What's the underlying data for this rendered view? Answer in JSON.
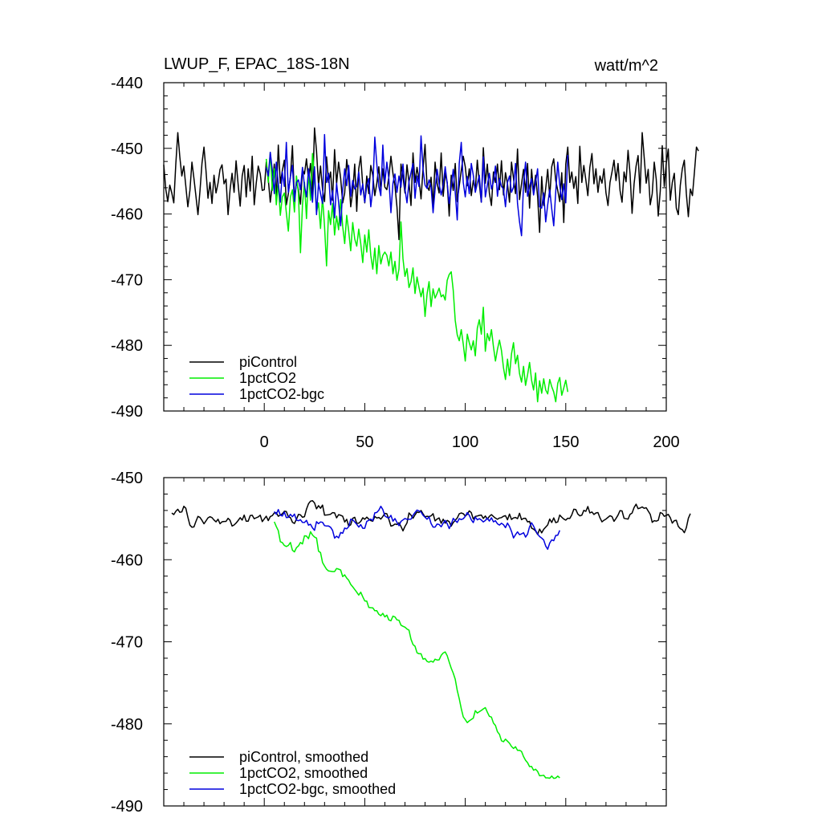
{
  "colors": {
    "piControl": "#000000",
    "pct1CO2": "#00ee00",
    "bgc": "#0000dd"
  },
  "chart_data": [
    {
      "type": "line",
      "title": "LWUP_F, EPAC_18S-18N",
      "units": "watt/m^2",
      "xlim": [
        -50,
        200
      ],
      "ylim": [
        -490,
        -440
      ],
      "xticks": [
        0,
        50,
        100,
        150,
        200
      ],
      "xtick_labels": [
        "0",
        "50",
        "100",
        "150",
        "200"
      ],
      "yticks": [
        -440,
        -450,
        -460,
        -470,
        -480,
        -490
      ],
      "ytick_labels": [
        "-440",
        "-450",
        "-460",
        "-470",
        "-480",
        "-490"
      ],
      "legend_position": "bottom-left",
      "series": [
        {
          "name": "piControl",
          "color": "#000000",
          "x_start": -50,
          "x_step": 1,
          "values": [
            -452.5,
            -456.2,
            -458.1,
            -455.6,
            -456.8,
            -458.3,
            -452.4,
            -447.6,
            -451.3,
            -454.2,
            -452.7,
            -455.8,
            -458.9,
            -456.4,
            -452.1,
            -454.6,
            -457.3,
            -460.1,
            -456.5,
            -452.3,
            -449.8,
            -453.4,
            -457.6,
            -455.2,
            -458.4,
            -454.1,
            -456.8,
            -455.3,
            -453.2,
            -452.5,
            -455.4,
            -454.7,
            -460.1,
            -456.3,
            -453.8,
            -456.7,
            -451.9,
            -455.4,
            -458.8,
            -454.2,
            -452.6,
            -457.4,
            -453.1,
            -456.5,
            -451.2,
            -458.6,
            -455.3,
            -452.7,
            -453.9,
            -456.4,
            -456.3,
            -452.1,
            -454.7,
            -458.2,
            -455.6,
            -452.4,
            -457.5,
            -449.5,
            -455.3,
            -453.4,
            -451.8,
            -458.6,
            -456.9,
            -454.3,
            -449.6,
            -457.8,
            -455.1,
            -456.3,
            -458.5,
            -453.2,
            -453.9,
            -451.6,
            -454.8,
            -452.3,
            -457.1,
            -446.9,
            -450.4,
            -455.6,
            -452.7,
            -456.3,
            -458.1,
            -451.3,
            -455.2,
            -453.6,
            -457.9,
            -450.2,
            -455.4,
            -452.1,
            -454.6,
            -458.3,
            -456.8,
            -451.7,
            -454.3,
            -458.9,
            -456.6,
            -452.4,
            -459.6,
            -453.1,
            -451.2,
            -455.7,
            -458.3,
            -454.2,
            -456.9,
            -452.6,
            -454.1,
            -457.2,
            -455.3,
            -452.8,
            -456.4,
            -453.1,
            -455.9,
            -456.3,
            -454.4,
            -451.2,
            -453.8,
            -455.7,
            -458.9,
            -463.9,
            -452.4,
            -454.3,
            -456.8,
            -452.5,
            -455.2,
            -458.7,
            -450.7,
            -455.2,
            -452.9,
            -454.8,
            -457.7,
            -453.1,
            -449.4,
            -455.8,
            -456.4,
            -454.4,
            -458.6,
            -452.1,
            -455.3,
            -456.8,
            -450.7,
            -457.3,
            -453.8,
            -455.2,
            -460.3,
            -454.1,
            -456.4,
            -452.3,
            -458.1,
            -455.7,
            -453.4,
            -451.2,
            -452.8,
            -455.7,
            -453.1,
            -457.2,
            -454.9,
            -456.3,
            -451.8,
            -455.4,
            -458.2,
            -449.9,
            -455.3,
            -452.4,
            -456.8,
            -458.7,
            -453.6,
            -455.2,
            -452.4,
            -456.3,
            -451.9,
            -457.1,
            -453.7,
            -455.4,
            -458.2,
            -452.1,
            -454.6,
            -456.9,
            -450.1,
            -457.8,
            -455.4,
            -453.2,
            -456.7,
            -452.3,
            -459.1,
            -453.2,
            -456.7,
            -454.1,
            -457.3,
            -462.8,
            -454.3,
            -458.7,
            -456.1,
            -453.2,
            -457.4,
            -452.8,
            -451.6,
            -454.9,
            -456.4,
            -458.1,
            -453.7,
            -461.3,
            -452.4,
            -449.8,
            -455.2,
            -453.6,
            -456.1,
            -454.3,
            -458.4,
            -449.7,
            -455.2,
            -452.6,
            -454.8,
            -457.2,
            -452.9,
            -450.8,
            -455.4,
            -453.1,
            -456.7,
            -454.2,
            -455.3,
            -453.1,
            -456.8,
            -458.7,
            -455.2,
            -453.6,
            -451.8,
            -454.9,
            -452.3,
            -456.4,
            -458.2,
            -453.6,
            -455.1,
            -450.3,
            -453.9,
            -459.9,
            -455.4,
            -452.7,
            -451.1,
            -456.8,
            -447.6,
            -451.4,
            -455.3,
            -453.2,
            -458.6,
            -456.9,
            -452.1,
            -454.7,
            -460.3,
            -456.5,
            -449.6,
            -455.8,
            -452.3,
            -450.1,
            -457.9,
            -455.2,
            -453.8,
            -459.1,
            -460.1,
            -455.6,
            -453.1,
            -451.8,
            -456.9,
            -460.4,
            -456.2,
            -457.2,
            -453.6,
            -449.8,
            -450.4
          ]
        },
        {
          "name": "1pctCO2",
          "color": "#00ee00",
          "x_start": 1,
          "x_step": 1,
          "values": [
            -451.6,
            -455.2,
            -450.6,
            -456.4,
            -453.1,
            -458.6,
            -455.3,
            -460.2,
            -457.4,
            -456.8,
            -459.8,
            -462.6,
            -457.4,
            -456.3,
            -459.7,
            -454.2,
            -456.9,
            -465.9,
            -458.6,
            -455.2,
            -460.7,
            -453.6,
            -457.9,
            -450.8,
            -454.5,
            -459.7,
            -458.3,
            -462.2,
            -457.4,
            -461.9,
            -467.9,
            -459.5,
            -461.6,
            -458.4,
            -463.2,
            -460.3,
            -462.4,
            -457.8,
            -461.9,
            -464.5,
            -460.2,
            -462.6,
            -465.6,
            -461.3,
            -463.8,
            -464.9,
            -462.3,
            -464.5,
            -467.4,
            -463.2,
            -465.8,
            -462.4,
            -466.3,
            -468.4,
            -465.2,
            -469.1,
            -464.8,
            -467.6,
            -466.3,
            -465.8,
            -466.3,
            -467.9,
            -465.8,
            -469.1,
            -467.2,
            -470.1,
            -468.4,
            -461.2,
            -466.8,
            -469.5,
            -468.3,
            -471.2,
            -470.3,
            -468.2,
            -472.1,
            -469.6,
            -471.2,
            -472.6,
            -471.3,
            -475.6,
            -472.2,
            -470.3,
            -474.1,
            -471.4,
            -472.8,
            -472.1,
            -471.3,
            -472.6,
            -472.3,
            -473.1,
            -470.1,
            -469.2,
            -468.8,
            -471.6,
            -476.2,
            -478.4,
            -479.3,
            -477.6,
            -479.8,
            -482.4,
            -478.3,
            -479.6,
            -480.7,
            -479.3,
            -481.6,
            -477.4,
            -476.1,
            -478.3,
            -474.2,
            -480.9,
            -478.2,
            -479.3,
            -477.6,
            -480.2,
            -482.4,
            -480.6,
            -479.2,
            -480.8,
            -483.4,
            -485.2,
            -482.1,
            -484.6,
            -481.3,
            -479.6,
            -482.8,
            -481.5,
            -484.3,
            -485.6,
            -483.2,
            -486.1,
            -484.5,
            -482.6,
            -485.3,
            -486.8,
            -484.2,
            -488.6,
            -485.4,
            -487.3,
            -485.1,
            -486.8,
            -487.4,
            -485.2,
            -486.3,
            -487.1,
            -488.6,
            -485.8,
            -484.9,
            -487.6,
            -486.5,
            -485.3,
            -487.1
          ]
        },
        {
          "name": "1pctCO2-bgc",
          "color": "#0000dd",
          "x_start": 1,
          "x_step": 1,
          "values": [
            -452.9,
            -454.2,
            -450.6,
            -453.3,
            -456.9,
            -452.1,
            -455.4,
            -458.2,
            -453.6,
            -455.8,
            -449.1,
            -456.7,
            -454.3,
            -452.6,
            -458.1,
            -455.2,
            -454.8,
            -456.3,
            -452.9,
            -455.7,
            -457.4,
            -453.1,
            -455.6,
            -458.2,
            -452.8,
            -460.1,
            -455.3,
            -456.9,
            -458.4,
            -447.9,
            -455.2,
            -453.8,
            -458.6,
            -456.4,
            -460.6,
            -455.3,
            -458.2,
            -461.8,
            -456.4,
            -453.1,
            -455.7,
            -452.6,
            -457.3,
            -454.9,
            -456.2,
            -455.8,
            -453.6,
            -457.1,
            -455.4,
            -458.2,
            -455.7,
            -454.6,
            -458.9,
            -456.2,
            -448.3,
            -452.4,
            -455.8,
            -457.2,
            -449.5,
            -455.3,
            -452.1,
            -454.6,
            -459.8,
            -455.3,
            -453.9,
            -456.7,
            -454.2,
            -455.9,
            -452.4,
            -456.2,
            -458.3,
            -455.1,
            -453.7,
            -452.3,
            -457.6,
            -454.2,
            -455.8,
            -448.1,
            -453.2,
            -455.6,
            -456.1,
            -454.8,
            -455.9,
            -459.8,
            -456.3,
            -453.2,
            -455.4,
            -457.1,
            -455.6,
            -452.8,
            -455.3,
            -458.4,
            -455.9,
            -453.2,
            -456.7,
            -460.9,
            -452.3,
            -449.1,
            -455.2,
            -457.4,
            -454.3,
            -456.9,
            -452.3,
            -454.1,
            -456.7,
            -455.3,
            -454.1,
            -458.2,
            -451.3,
            -457.4,
            -455.6,
            -453.8,
            -456.2,
            -455.1,
            -452.7,
            -457.3,
            -454.6,
            -455.8,
            -456.2,
            -458.9,
            -455.2,
            -454.2,
            -456.7,
            -455.9,
            -452.3,
            -458.4,
            -461.2,
            -463.3,
            -455.4,
            -452.1,
            -457.3,
            -455.8,
            -454.6,
            -457.1,
            -455.2,
            -453.1,
            -458.9,
            -459.1,
            -456.8,
            -461.2,
            -458.6,
            -456.3,
            -459.2,
            -461.8,
            -456.6,
            -452.1,
            -455.6,
            -457.8,
            -455.4,
            -458.3,
            -451.0
          ]
        }
      ],
      "legend": [
        "piControl",
        "1pctCO2",
        "1pctCO2-bgc"
      ]
    },
    {
      "type": "line",
      "title": "",
      "xlim": [
        -50,
        200
      ],
      "ylim": [
        -490,
        -450
      ],
      "xticks": [
        0,
        50,
        100,
        150,
        200
      ],
      "yticks": [
        -450,
        -460,
        -470,
        -480,
        -490
      ],
      "ytick_labels": [
        "-450",
        "-460",
        "-470",
        "-480",
        "-490"
      ],
      "smoothing_window": 9,
      "legend_position": "bottom-left",
      "series": [
        {
          "name": "piControl, smoothed",
          "source": "piControl",
          "color": "#000000"
        },
        {
          "name": "1pctCO2, smoothed",
          "source": "1pctCO2",
          "color": "#00ee00"
        },
        {
          "name": "1pctCO2-bgc, smoothed",
          "source": "1pctCO2-bgc",
          "color": "#0000dd"
        }
      ],
      "legend": [
        "piControl, smoothed",
        "1pctCO2, smoothed",
        "1pctCO2-bgc, smoothed"
      ]
    }
  ]
}
